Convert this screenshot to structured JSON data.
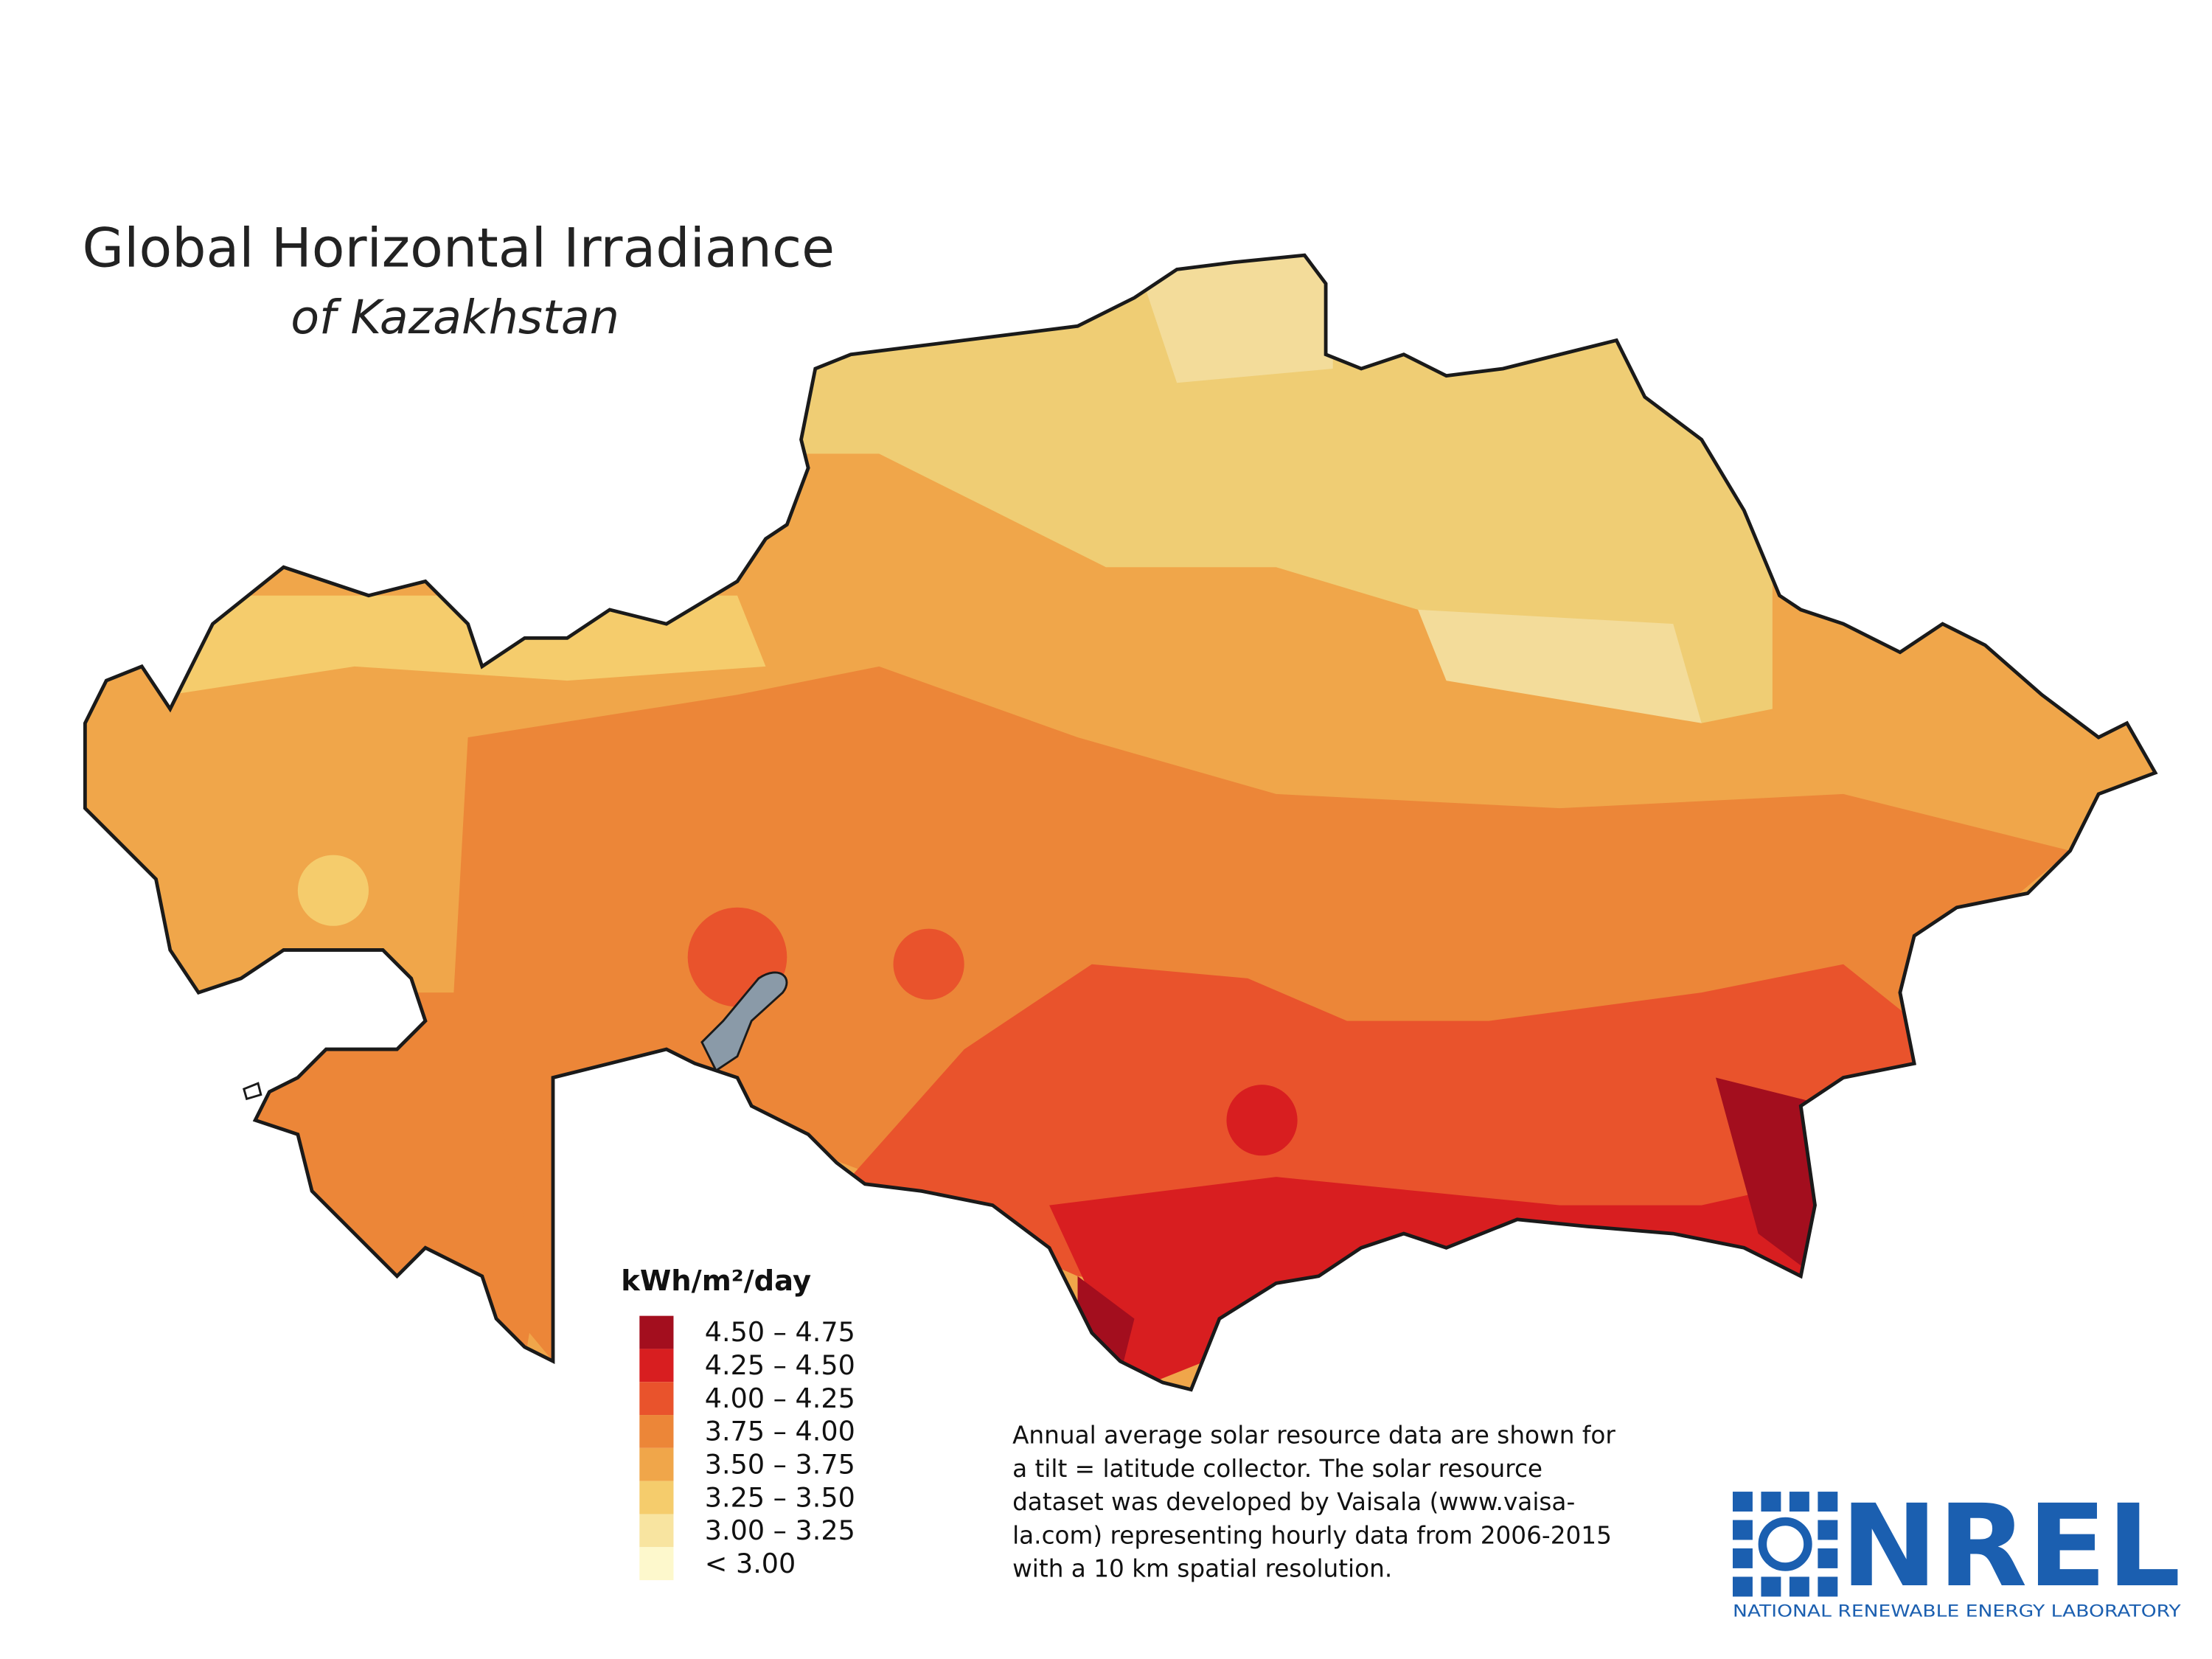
{
  "header": {
    "title": "Global Horizontal Irradiance",
    "subtitle": "of Kazakhstan"
  },
  "legend": {
    "title": "kWh/m²/day",
    "items": [
      {
        "label": "4.50 – 4.75",
        "color": "#a30e1e"
      },
      {
        "label": "4.25 – 4.50",
        "color": "#d81e20"
      },
      {
        "label": "4.00 – 4.25",
        "color": "#e9532c"
      },
      {
        "label": "3.75 – 4.00",
        "color": "#ec8638"
      },
      {
        "label": "3.50 – 3.75",
        "color": "#f0a64a"
      },
      {
        "label": "3.25 – 3.50",
        "color": "#f5cc6c"
      },
      {
        "label": "3.00 – 3.25",
        "color": "#f8e4a0"
      },
      {
        "label": "< 3.00",
        "color": "#fdf8cc"
      }
    ]
  },
  "note": {
    "lines": [
      "Annual average solar resource data are shown for",
      "a tilt = latitude collector. The solar resource",
      "dataset was developed by Vaisala (www.vaisa-",
      "la.com) representing hourly data from 2006-2015",
      "with a 10 km spatial resolution."
    ]
  },
  "logo": {
    "name": "NREL",
    "tagline": "NATIONAL RENEWABLE ENERGY LABORATORY"
  }
}
